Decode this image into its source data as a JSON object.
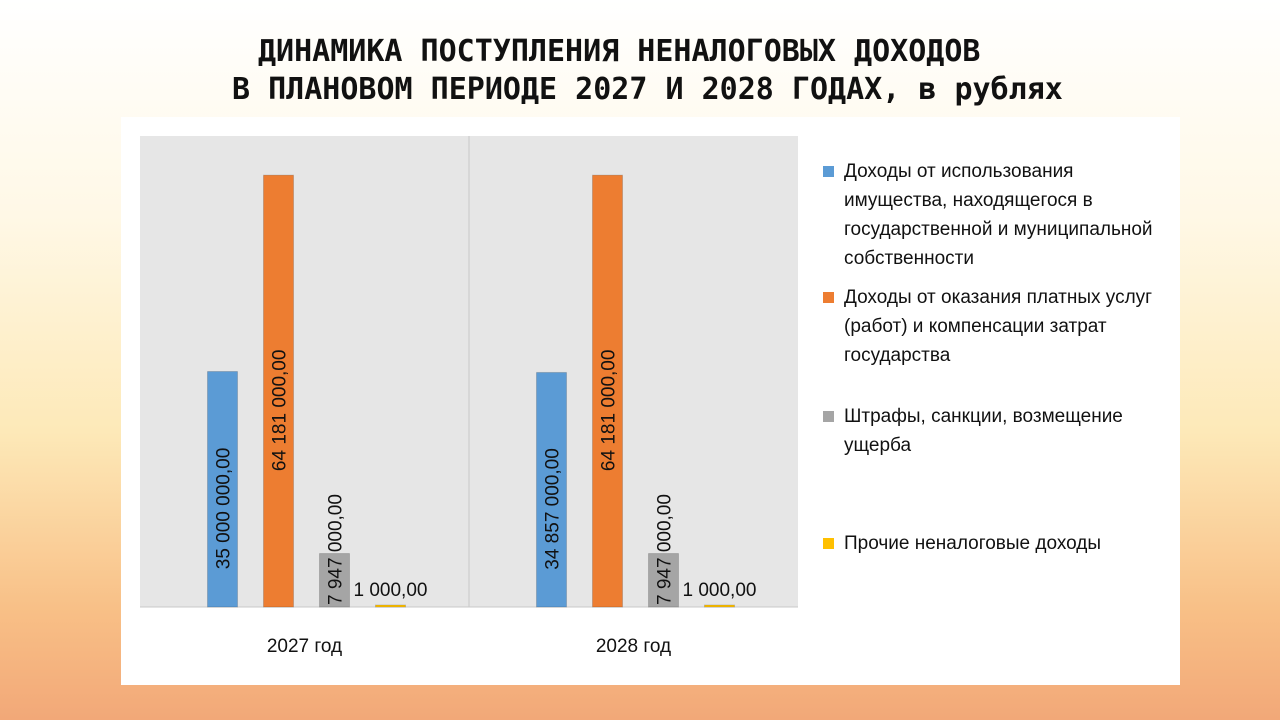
{
  "slide": {
    "title_line1": "ДИНАМИКА ПОСТУПЛЕНИЯ НЕНАЛОГОВЫХ ДОХОДОВ",
    "title_line2": "В ПЛАНОВОМ ПЕРИОДЕ 2027 И 2028 ГОДАХ, в рублях"
  },
  "chart_data": {
    "type": "bar",
    "title": "",
    "xlabel": "",
    "ylabel": "",
    "categories": [
      "2027 год",
      "2028 год"
    ],
    "ylim": [
      0,
      70000000
    ],
    "grid": false,
    "legend_position": "right",
    "series": [
      {
        "name": "Доходы от использования имущества, находящегося в государственной и муниципальной собственности",
        "color": "#5b9bd5",
        "values": [
          35000000,
          34857000
        ],
        "labels": [
          "35 000 000,00",
          "34 857 000,00"
        ]
      },
      {
        "name": "Доходы от оказания платных услуг (работ) и компенсации затрат государства",
        "color": "#ed7d31",
        "values": [
          64181000,
          64181000
        ],
        "labels": [
          "64 181 000,00",
          "64 181 000,00"
        ]
      },
      {
        "name": "Штрафы, санкции, возмещение ущерба",
        "color": "#a5a5a5",
        "values": [
          7947000,
          7947000
        ],
        "labels": [
          "7 947 000,00",
          "7 947 000,00"
        ]
      },
      {
        "name": "Прочие неналоговые доходы",
        "color": "#ffc000",
        "values": [
          1000,
          1000
        ],
        "labels": [
          "1 000,00",
          "1 000,00"
        ]
      }
    ]
  }
}
